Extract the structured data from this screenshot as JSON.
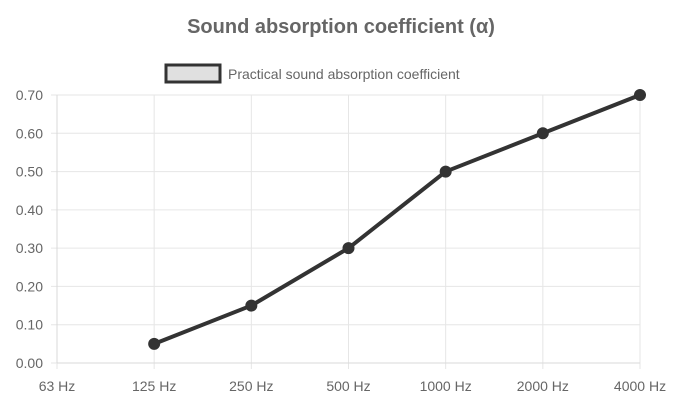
{
  "chart_data": {
    "type": "line",
    "title": "Sound absorption coefficient (α)",
    "categories": [
      "63 Hz",
      "125 Hz",
      "250 Hz",
      "500 Hz",
      "1000 Hz",
      "2000 Hz",
      "4000 Hz"
    ],
    "series": [
      {
        "name": "Practical sound absorption coefficient",
        "values": [
          null,
          0.05,
          0.15,
          0.3,
          0.5,
          0.6,
          0.7
        ],
        "color": "#333333",
        "fill": "#e0e0e0"
      }
    ],
    "ylim": [
      0,
      0.7
    ],
    "yticks": [
      "0.00",
      "0.10",
      "0.20",
      "0.30",
      "0.40",
      "0.50",
      "0.60",
      "0.70"
    ],
    "grid": true,
    "legend": "top"
  }
}
